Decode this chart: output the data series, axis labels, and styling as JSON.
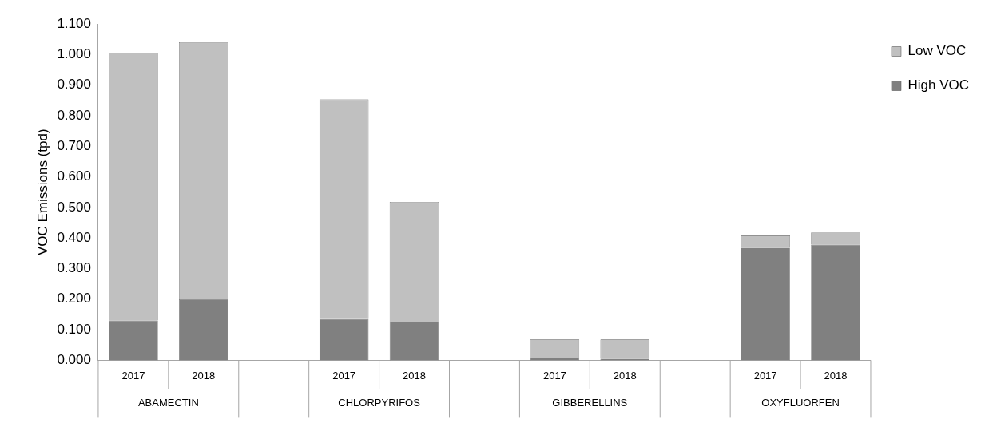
{
  "chart_data": {
    "type": "bar",
    "stacked": true,
    "ylabel": "VOC Emissions (tpd)",
    "categories": [
      "2017",
      "2018",
      null,
      "2017",
      "2018",
      null,
      "2017",
      "2018",
      null,
      "2017",
      "2018"
    ],
    "series": [
      {
        "name": "High VOC",
        "color": "#808080",
        "values": [
          0.13,
          0.2,
          null,
          0.135,
          0.125,
          null,
          0.008,
          0.005,
          null,
          0.368,
          0.378
        ]
      },
      {
        "name": "Low VOC",
        "color": "#c0c0c0",
        "values": [
          0.875,
          0.84,
          null,
          0.718,
          0.393,
          null,
          0.06,
          0.063,
          null,
          0.04,
          0.04
        ]
      }
    ],
    "annotations": [
      "ABAMECTIN",
      "CHLORPYRIFOS",
      "GIBBERELLINS",
      "OXYFLUORFEN"
    ],
    "ylim": [
      0,
      1.1
    ],
    "yticks": [
      {
        "value": 0,
        "label": "0.000"
      },
      {
        "value": 0.1,
        "label": "0.100"
      },
      {
        "value": 0.2,
        "label": "0.200"
      },
      {
        "value": 0.3,
        "label": "0.300"
      },
      {
        "value": 0.4,
        "label": "0.400"
      },
      {
        "value": 0.5,
        "label": "0.500"
      },
      {
        "value": 0.6,
        "label": "0.600"
      },
      {
        "value": 0.7,
        "label": "0.700"
      },
      {
        "value": 0.8,
        "label": "0.800"
      },
      {
        "value": 0.9,
        "label": "0.900"
      },
      {
        "value": 1.0,
        "label": "1.000"
      },
      {
        "value": 1.1,
        "label": "1.100"
      }
    ],
    "grid": false,
    "legend": "top right"
  }
}
